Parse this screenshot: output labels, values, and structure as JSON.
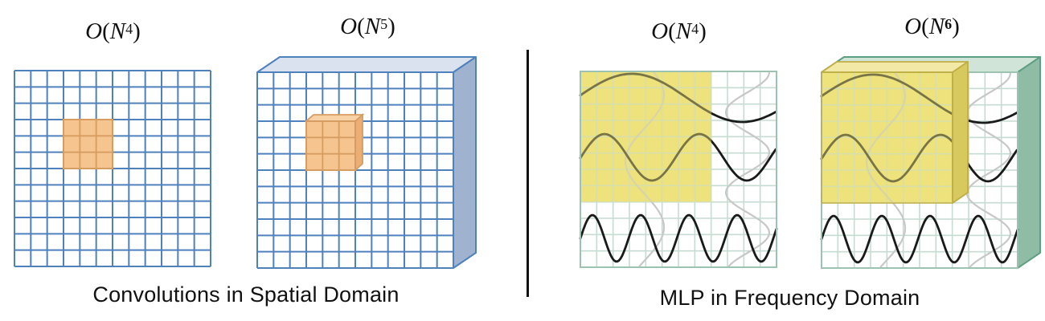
{
  "section_left": {
    "caption": "Convolutions in Spatial Domain",
    "panel_flat": {
      "complexity": {
        "o": "O",
        "open": "(",
        "var": "N",
        "exp": "4",
        "close": ")"
      }
    },
    "panel_3d": {
      "complexity": {
        "o": "O",
        "open": "(",
        "var": "N",
        "exp": "5",
        "close": ")"
      }
    }
  },
  "section_right": {
    "caption": "MLP in Frequency Domain",
    "panel_flat": {
      "complexity": {
        "o": "O",
        "open": "(",
        "var": "N",
        "exp": "4",
        "close": ")"
      }
    },
    "panel_3d": {
      "complexity": {
        "o": "O",
        "open": "(",
        "var": "N",
        "exp": "6",
        "close": ")"
      }
    }
  },
  "colors": {
    "blue_line": "#4F81BD",
    "blue_top": "#D9E2EE",
    "blue_side": "#9FB3D1",
    "orange_fill": "#F6C48E",
    "orange_line": "#D59D62",
    "orange_top": "#F8D2A4",
    "orange_side": "#EBAE74",
    "teal_line": "#C6DCD2",
    "teal_border": "#9CC3B2",
    "green_top": "#D0E5D8",
    "green_side": "#8FBCA4",
    "green_line": "#5E9F83",
    "yellow": "#EDE27C",
    "yellow_top": "#F1E9A5",
    "yellow_side": "#D8C95F",
    "yellow_line": "#BFAE45",
    "wave_black": "#1A1A1A",
    "wave_gray": "#C8C8C8",
    "divider": "#111111",
    "text": "#111111"
  }
}
